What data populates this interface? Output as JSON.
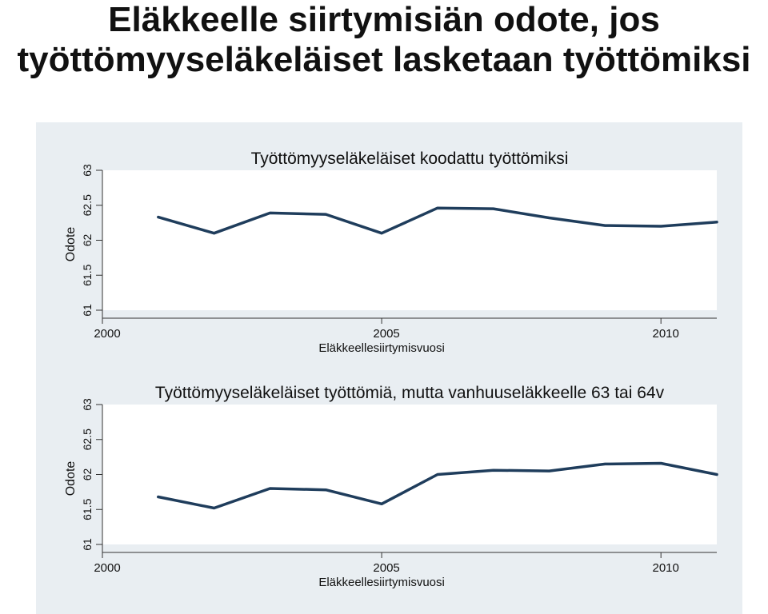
{
  "slide": {
    "title_line1": "Eläkkeelle siirtymisiän odote, jos",
    "title_line2": "työttömyyseläkeläiset lasketaan työttömiksi"
  },
  "colors": {
    "panel_bg": "#e9eef2",
    "plot_bg": "#ffffff",
    "line": "#1f3d5c",
    "axis": "#333333"
  },
  "chart_data": [
    {
      "type": "line",
      "title": "Työttömyyseläkeläiset koodattu työttömiksi",
      "xlabel": "Eläkkeellesiirtymisvuosi",
      "ylabel": "Odote",
      "xlim": [
        2000,
        2011
      ],
      "ylim": [
        61,
        63
      ],
      "xticks": [
        2000,
        2005,
        2010
      ],
      "yticks": [
        61,
        61.5,
        62,
        62.5,
        63
      ],
      "ytick_labels": [
        "61",
        "61.5",
        "62",
        "62.5",
        "63"
      ],
      "grid": false,
      "x": [
        2001,
        2002,
        2003,
        2004,
        2005,
        2006,
        2007,
        2008,
        2009,
        2010,
        2011
      ],
      "series": [
        {
          "values": [
            62.33,
            62.1,
            62.39,
            62.37,
            62.1,
            62.46,
            62.45,
            62.32,
            62.21,
            62.2,
            62.26
          ]
        }
      ]
    },
    {
      "type": "line",
      "title": "Työttömyyseläkeläiset työttömiä, mutta vanhuuseläkkeelle 63 tai 64v",
      "xlabel": "Eläkkeellesiirtymisvuosi",
      "ylabel": "Odote",
      "xlim": [
        2000,
        2011
      ],
      "ylim": [
        61,
        63
      ],
      "xticks": [
        2000,
        2005,
        2010
      ],
      "yticks": [
        61,
        61.5,
        62,
        62.5,
        63
      ],
      "ytick_labels": [
        "61",
        "61.5",
        "62",
        "62.5",
        "63"
      ],
      "grid": false,
      "x": [
        2001,
        2002,
        2003,
        2004,
        2005,
        2006,
        2007,
        2008,
        2009,
        2010,
        2011
      ],
      "series": [
        {
          "values": [
            61.68,
            61.52,
            61.8,
            61.78,
            61.58,
            62.0,
            62.06,
            62.05,
            62.15,
            62.16,
            62.0
          ]
        }
      ]
    }
  ]
}
